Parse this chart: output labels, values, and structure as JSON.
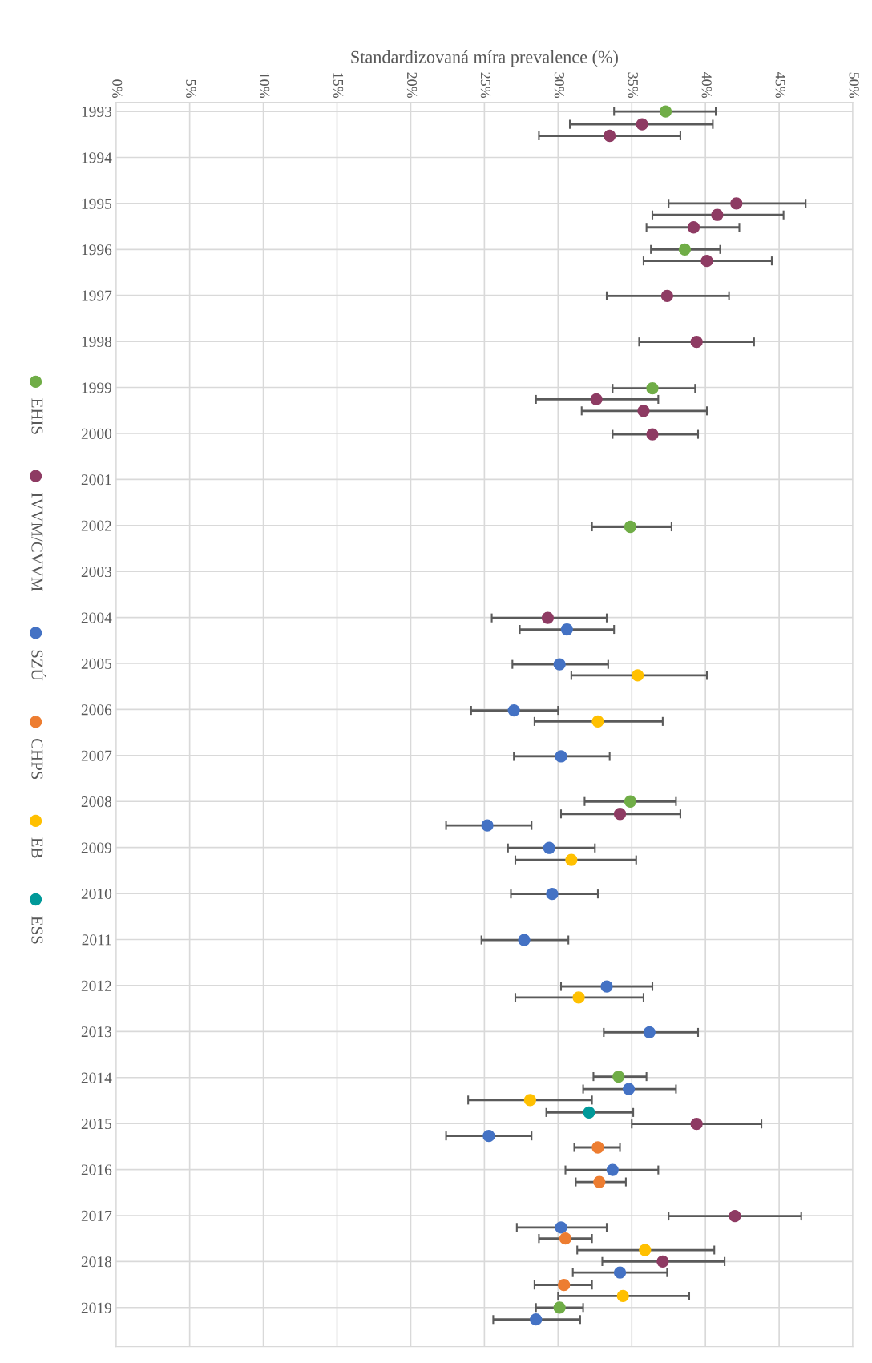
{
  "chart_data": {
    "type": "scatter",
    "xlabel": "Standardizovaná míra prevalence (%)",
    "xlim": [
      0,
      50
    ],
    "xticks": [
      {
        "value": 0,
        "label": "0%"
      },
      {
        "value": 5,
        "label": "5%"
      },
      {
        "value": 10,
        "label": "10%"
      },
      {
        "value": 15,
        "label": "15%"
      },
      {
        "value": 20,
        "label": "20%"
      },
      {
        "value": 25,
        "label": "25%"
      },
      {
        "value": 30,
        "label": "30%"
      },
      {
        "value": 35,
        "label": "35%"
      },
      {
        "value": 40,
        "label": "40%"
      },
      {
        "value": 45,
        "label": "45%"
      },
      {
        "value": 50,
        "label": "50%"
      }
    ],
    "ylim": [
      2019.85,
      1992.8
    ],
    "yticks": [
      1993,
      1994,
      1995,
      1996,
      1997,
      1998,
      1999,
      2000,
      2001,
      2002,
      2003,
      2004,
      2005,
      2006,
      2007,
      2008,
      2009,
      2010,
      2011,
      2012,
      2013,
      2014,
      2015,
      2016,
      2017,
      2018,
      2019
    ],
    "grid": true,
    "legend": "left",
    "marker": "circle",
    "series": [
      {
        "name": "EHIS",
        "color": "#70ad47",
        "x": [
          37.3,
          38.6,
          36.4,
          34.9,
          34.9,
          34.1,
          30.1
        ],
        "values": [
          1993.0,
          1996.0,
          1999.02,
          2002.03,
          2008.0,
          2013.98,
          2019.0
        ],
        "xerrors": [
          [
            33.8,
            40.7
          ],
          [
            36.3,
            41.0
          ],
          [
            33.7,
            39.3
          ],
          [
            32.3,
            37.7
          ],
          [
            31.8,
            38.0
          ],
          [
            32.4,
            36.0
          ],
          [
            28.5,
            31.7
          ]
        ]
      },
      {
        "name": "IVVM/CVVM",
        "color": "#8e3b63",
        "x": [
          35.7,
          33.5,
          42.1,
          40.8,
          39.2,
          40.1,
          37.4,
          39.4,
          32.6,
          35.8,
          36.4,
          29.3,
          34.2,
          39.4,
          42.0,
          37.1
        ],
        "values": [
          1993.28,
          1993.53,
          1995.0,
          1995.25,
          1995.52,
          1996.25,
          1997.01,
          1998.01,
          1999.26,
          1999.51,
          2000.02,
          2004.01,
          2008.27,
          2015.01,
          2017.01,
          2018.0
        ],
        "xerrors": [
          [
            30.8,
            40.5
          ],
          [
            28.7,
            38.3
          ],
          [
            37.5,
            46.8
          ],
          [
            36.4,
            45.3
          ],
          [
            36.0,
            42.3
          ],
          [
            35.8,
            44.5
          ],
          [
            33.3,
            41.6
          ],
          [
            35.5,
            43.3
          ],
          [
            28.5,
            36.8
          ],
          [
            31.6,
            40.1
          ],
          [
            33.7,
            39.5
          ],
          [
            25.5,
            33.3
          ],
          [
            30.2,
            38.3
          ],
          [
            35.0,
            43.8
          ],
          [
            37.5,
            46.5
          ],
          [
            33.0,
            41.3
          ]
        ]
      },
      {
        "name": "SZÚ",
        "color": "#4472c4",
        "x": [
          30.6,
          30.1,
          27.0,
          30.2,
          25.2,
          29.4,
          29.6,
          27.7,
          33.3,
          36.2,
          34.8,
          25.3,
          33.7,
          30.2,
          34.2,
          28.5
        ],
        "values": [
          2004.26,
          2005.02,
          2006.02,
          2007.02,
          2008.52,
          2009.01,
          2010.01,
          2011.01,
          2012.02,
          2013.02,
          2014.25,
          2015.27,
          2016.01,
          2017.26,
          2018.24,
          2019.26
        ],
        "xerrors": [
          [
            27.4,
            33.8
          ],
          [
            26.9,
            33.4
          ],
          [
            24.1,
            30.0
          ],
          [
            27.0,
            33.5
          ],
          [
            22.4,
            28.2
          ],
          [
            26.6,
            32.5
          ],
          [
            26.8,
            32.7
          ],
          [
            24.8,
            30.7
          ],
          [
            30.2,
            36.4
          ],
          [
            33.1,
            39.5
          ],
          [
            31.7,
            38.0
          ],
          [
            22.4,
            28.2
          ],
          [
            30.5,
            36.8
          ],
          [
            27.2,
            33.3
          ],
          [
            31.0,
            37.4
          ],
          [
            25.6,
            31.5
          ]
        ]
      },
      {
        "name": "CHPS",
        "color": "#ed7d31",
        "x": [
          32.7,
          32.8,
          30.5,
          30.4
        ],
        "values": [
          2015.52,
          2016.27,
          2017.5,
          2018.51
        ],
        "xerrors": [
          [
            31.1,
            34.2
          ],
          [
            31.2,
            34.6
          ],
          [
            28.7,
            32.3
          ],
          [
            28.4,
            32.3
          ]
        ]
      },
      {
        "name": "EB",
        "color": "#ffc000",
        "x": [
          35.4,
          32.7,
          30.9,
          31.4,
          28.1,
          35.9,
          34.4
        ],
        "values": [
          2005.26,
          2006.26,
          2009.27,
          2012.26,
          2014.49,
          2017.75,
          2018.75
        ],
        "xerrors": [
          [
            30.9,
            40.1
          ],
          [
            28.4,
            37.1
          ],
          [
            27.1,
            35.3
          ],
          [
            27.1,
            35.8
          ],
          [
            23.9,
            32.3
          ],
          [
            31.3,
            40.6
          ],
          [
            30.0,
            38.9
          ]
        ]
      },
      {
        "name": "ESS",
        "color": "#009999",
        "x": [
          32.1
        ],
        "values": [
          2014.76
        ],
        "xerrors": [
          [
            29.2,
            35.1
          ]
        ]
      }
    ]
  }
}
